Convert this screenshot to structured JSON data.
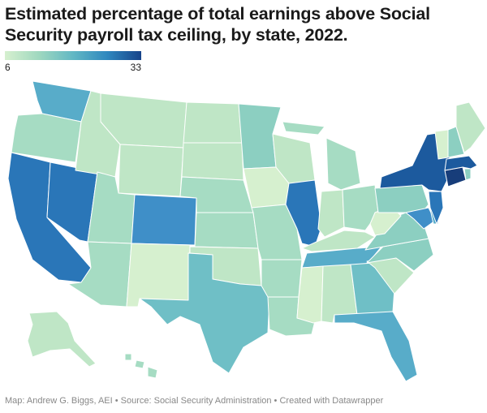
{
  "title": "Estimated percentage of total earnings above Social Security payroll tax ceiling, by state, 2022.",
  "legend": {
    "min_label": "6",
    "max_label": "33",
    "min": 6,
    "max": 33
  },
  "footer": "Map: Andrew G. Biggs, AEI • Source: Social Security Administration • Created with Datawrapper",
  "colors": {
    "lightest": "#d6f0cf",
    "light": "#bfe6c6",
    "light_mid": "#a6dcc3",
    "mid": "#8ccfc1",
    "teal": "#6fbfc6",
    "mid_blue": "#58acc9",
    "blue": "#3f8fc8",
    "strong_blue": "#2a76b8",
    "dark_blue": "#1c5a9e",
    "darkest": "#173d7a",
    "border": "#ffffff"
  }
}
